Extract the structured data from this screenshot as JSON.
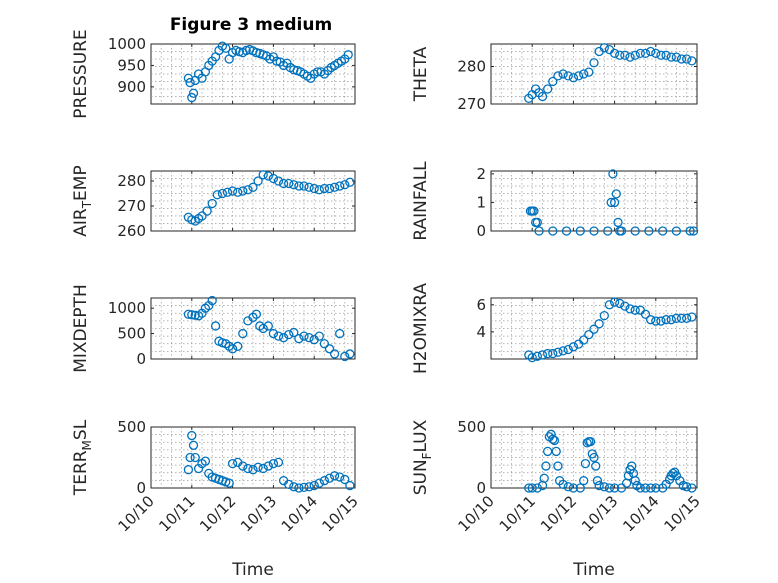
{
  "figure_title": "Figure 3 medium",
  "marker_color": "#0072BD",
  "chart_data": [
    {
      "type": "scatter",
      "title": "Figure 3 medium",
      "ylabel": "PRESSURE",
      "xlim": [
        "10/10",
        "10/15"
      ],
      "ylim": [
        860,
        1000
      ],
      "yticks": [
        900,
        950,
        1000
      ],
      "xtick_labels_shown": false,
      "grid": "minor-dotted",
      "x": [
        "10/10 22:00",
        "10/10 23:00",
        "10/11 00:00",
        "10/11 01:00",
        "10/11 02:00",
        "10/11 04:00",
        "10/11 06:00",
        "10/11 08:00",
        "10/11 10:00",
        "10/11 12:00",
        "10/11 14:00",
        "10/11 16:00",
        "10/11 18:00",
        "10/11 20:00",
        "10/11 22:00",
        "10/12 00:00",
        "10/12 02:00",
        "10/12 04:00",
        "10/12 06:00",
        "10/12 08:00",
        "10/12 10:00",
        "10/12 12:00",
        "10/12 14:00",
        "10/12 16:00",
        "10/12 18:00",
        "10/12 20:00",
        "10/12 22:00",
        "10/13 00:00",
        "10/13 02:00",
        "10/13 04:00",
        "10/13 06:00",
        "10/13 08:00",
        "10/13 10:00",
        "10/13 12:00",
        "10/13 14:00",
        "10/13 16:00",
        "10/13 18:00",
        "10/13 20:00",
        "10/13 22:00",
        "10/14 00:00",
        "10/14 02:00",
        "10/14 04:00",
        "10/14 06:00",
        "10/14 08:00",
        "10/14 10:00",
        "10/14 12:00",
        "10/14 14:00",
        "10/14 16:00",
        "10/14 18:00",
        "10/14 20:00"
      ],
      "y": [
        920,
        910,
        875,
        885,
        915,
        930,
        920,
        935,
        950,
        960,
        970,
        985,
        995,
        990,
        965,
        980,
        985,
        982,
        980,
        985,
        987,
        984,
        980,
        978,
        975,
        972,
        965,
        970,
        960,
        958,
        950,
        955,
        945,
        940,
        938,
        935,
        930,
        925,
        920,
        930,
        935,
        935,
        930,
        938,
        945,
        950,
        955,
        960,
        965,
        975
      ]
    },
    {
      "type": "scatter",
      "ylabel": "THETA",
      "xlim": [
        "10/10",
        "10/15"
      ],
      "ylim": [
        270,
        286
      ],
      "yticks": [
        270,
        280
      ],
      "xtick_labels_shown": false,
      "grid": "minor-dotted",
      "x": [
        "10/10 22:00",
        "10/11 00:00",
        "10/11 02:00",
        "10/11 04:00",
        "10/11 06:00",
        "10/11 09:00",
        "10/11 12:00",
        "10/11 15:00",
        "10/11 18:00",
        "10/11 21:00",
        "10/12 00:00",
        "10/12 03:00",
        "10/12 06:00",
        "10/12 09:00",
        "10/12 12:00",
        "10/12 15:00",
        "10/12 18:00",
        "10/12 21:00",
        "10/13 00:00",
        "10/13 03:00",
        "10/13 06:00",
        "10/13 09:00",
        "10/13 12:00",
        "10/13 15:00",
        "10/13 18:00",
        "10/13 21:00",
        "10/14 00:00",
        "10/14 03:00",
        "10/14 06:00",
        "10/14 09:00",
        "10/14 12:00",
        "10/14 15:00",
        "10/14 18:00",
        "10/14 21:00"
      ],
      "y": [
        271.5,
        272.5,
        274,
        273,
        272,
        274,
        276,
        277.5,
        278,
        277.5,
        277,
        277.5,
        278,
        278.5,
        281,
        284,
        285,
        284.5,
        283.5,
        283,
        283,
        282.5,
        283,
        283.5,
        283.5,
        284,
        283.5,
        283,
        283,
        282.5,
        282.5,
        282,
        282,
        281.5
      ]
    },
    {
      "type": "scatter",
      "ylabel": "AIR_TEMP",
      "xlim": [
        "10/10",
        "10/15"
      ],
      "ylim": [
        260,
        284
      ],
      "yticks": [
        260,
        270,
        280
      ],
      "xtick_labels_shown": false,
      "grid": "minor-dotted",
      "x": [
        "10/10 22:00",
        "10/11 00:00",
        "10/11 02:00",
        "10/11 04:00",
        "10/11 06:00",
        "10/11 09:00",
        "10/11 12:00",
        "10/11 15:00",
        "10/11 18:00",
        "10/11 21:00",
        "10/12 00:00",
        "10/12 03:00",
        "10/12 06:00",
        "10/12 09:00",
        "10/12 12:00",
        "10/12 15:00",
        "10/12 18:00",
        "10/12 21:00",
        "10/13 00:00",
        "10/13 03:00",
        "10/13 06:00",
        "10/13 09:00",
        "10/13 12:00",
        "10/13 15:00",
        "10/13 18:00",
        "10/13 21:00",
        "10/14 00:00",
        "10/14 03:00",
        "10/14 06:00",
        "10/14 09:00",
        "10/14 12:00",
        "10/14 15:00",
        "10/14 18:00",
        "10/14 21:00"
      ],
      "y": [
        265.5,
        264.5,
        264,
        265,
        266,
        268,
        271,
        274.5,
        275,
        275.5,
        276,
        275.5,
        276,
        276.5,
        277.5,
        280,
        282.5,
        282,
        281,
        280,
        279,
        279,
        278.5,
        278,
        278,
        277.5,
        277,
        276.5,
        277,
        277,
        277.5,
        278,
        278.5,
        279.5
      ]
    },
    {
      "type": "scatter",
      "ylabel": "RAINFALL",
      "xlim": [
        "10/10",
        "10/15"
      ],
      "ylim": [
        0,
        2.1
      ],
      "yticks": [
        0,
        1,
        2
      ],
      "xtick_labels_shown": false,
      "grid": "minor-dotted",
      "x": [
        "10/10 23:00",
        "10/11 00:00",
        "10/11 01:00",
        "10/11 02:00",
        "10/11 03:00",
        "10/11 04:00",
        "10/11 12:00",
        "10/11 20:00",
        "10/12 04:00",
        "10/12 12:00",
        "10/12 20:00",
        "10/12 22:00",
        "10/12 23:00",
        "10/13 00:00",
        "10/13 01:00",
        "10/13 02:00",
        "10/13 03:00",
        "10/13 04:00",
        "10/13 12:00",
        "10/13 20:00",
        "10/14 04:00",
        "10/14 12:00",
        "10/14 20:00",
        "10/14 22:00"
      ],
      "y": [
        0.7,
        0.7,
        0.7,
        0.3,
        0.3,
        0,
        0,
        0,
        0,
        0,
        0,
        1.0,
        2.0,
        1.0,
        1.3,
        0.3,
        0,
        0,
        0,
        0,
        0,
        0,
        0,
        0
      ]
    },
    {
      "type": "scatter",
      "ylabel": "MIXDEPTH",
      "xlim": [
        "10/10",
        "10/15"
      ],
      "ylim": [
        0,
        1200
      ],
      "yticks": [
        0,
        500,
        1000
      ],
      "xtick_labels_shown": false,
      "grid": "minor-dotted",
      "x": [
        "10/10 22:00",
        "10/11 00:00",
        "10/11 02:00",
        "10/11 04:00",
        "10/11 06:00",
        "10/11 08:00",
        "10/11 10:00",
        "10/11 12:00",
        "10/11 14:00",
        "10/11 16:00",
        "10/11 18:00",
        "10/11 20:00",
        "10/11 22:00",
        "10/12 00:00",
        "10/12 03:00",
        "10/12 06:00",
        "10/12 09:00",
        "10/12 12:00",
        "10/12 14:00",
        "10/12 16:00",
        "10/12 18:00",
        "10/12 21:00",
        "10/13 00:00",
        "10/13 03:00",
        "10/13 06:00",
        "10/13 09:00",
        "10/13 12:00",
        "10/13 15:00",
        "10/13 18:00",
        "10/13 21:00",
        "10/14 00:00",
        "10/14 03:00",
        "10/14 06:00",
        "10/14 09:00",
        "10/14 12:00",
        "10/14 15:00",
        "10/14 18:00",
        "10/14 21:00"
      ],
      "y": [
        880,
        870,
        860,
        850,
        900,
        1000,
        1050,
        1150,
        650,
        350,
        320,
        300,
        250,
        200,
        250,
        500,
        750,
        820,
        880,
        650,
        600,
        650,
        500,
        450,
        420,
        480,
        520,
        400,
        450,
        420,
        380,
        450,
        300,
        200,
        100,
        500,
        50,
        100
      ]
    },
    {
      "type": "scatter",
      "ylabel": "H2OMIXRA",
      "xlim": [
        "10/10",
        "10/15"
      ],
      "ylim": [
        2,
        6.5
      ],
      "yticks": [
        4,
        6
      ],
      "xtick_labels_shown": false,
      "grid": "minor-dotted",
      "x": [
        "10/10 22:00",
        "10/11 00:00",
        "10/11 03:00",
        "10/11 06:00",
        "10/11 09:00",
        "10/11 12:00",
        "10/11 15:00",
        "10/11 18:00",
        "10/11 21:00",
        "10/12 00:00",
        "10/12 03:00",
        "10/12 06:00",
        "10/12 09:00",
        "10/12 12:00",
        "10/12 15:00",
        "10/12 18:00",
        "10/12 21:00",
        "10/13 00:00",
        "10/13 03:00",
        "10/13 06:00",
        "10/13 09:00",
        "10/13 12:00",
        "10/13 15:00",
        "10/13 18:00",
        "10/13 21:00",
        "10/14 00:00",
        "10/14 03:00",
        "10/14 06:00",
        "10/14 09:00",
        "10/14 12:00",
        "10/14 15:00",
        "10/14 18:00",
        "10/14 21:00"
      ],
      "y": [
        2.3,
        2.1,
        2.2,
        2.3,
        2.4,
        2.4,
        2.5,
        2.6,
        2.7,
        2.9,
        3.1,
        3.4,
        3.8,
        4.2,
        4.6,
        5.2,
        6.0,
        6.2,
        6.1,
        5.9,
        5.7,
        5.6,
        5.6,
        5.3,
        4.9,
        4.8,
        4.8,
        4.9,
        4.9,
        5.0,
        5.0,
        5.0,
        5.1
      ]
    },
    {
      "type": "scatter",
      "ylabel": "TERR_MSL",
      "xlim": [
        "10/10",
        "10/15"
      ],
      "ylim": [
        0,
        500
      ],
      "yticks": [
        0,
        500
      ],
      "xtick_labels": [
        "10/10",
        "10/11",
        "10/12",
        "10/13",
        "10/14",
        "10/15"
      ],
      "xlabel": "Time",
      "grid": "minor-dotted",
      "x": [
        "10/10 22:00",
        "10/10 23:00",
        "10/11 00:00",
        "10/11 01:00",
        "10/11 02:00",
        "10/11 04:00",
        "10/11 06:00",
        "10/11 08:00",
        "10/11 10:00",
        "10/11 12:00",
        "10/11 14:00",
        "10/11 16:00",
        "10/11 18:00",
        "10/11 20:00",
        "10/11 22:00",
        "10/12 00:00",
        "10/12 03:00",
        "10/12 06:00",
        "10/12 09:00",
        "10/12 12:00",
        "10/12 15:00",
        "10/12 18:00",
        "10/12 21:00",
        "10/13 00:00",
        "10/13 03:00",
        "10/13 06:00",
        "10/13 09:00",
        "10/13 12:00",
        "10/13 15:00",
        "10/13 18:00",
        "10/13 21:00",
        "10/14 00:00",
        "10/14 03:00",
        "10/14 06:00",
        "10/14 09:00",
        "10/14 12:00",
        "10/14 15:00",
        "10/14 18:00",
        "10/14 21:00"
      ],
      "y": [
        150,
        250,
        430,
        350,
        250,
        160,
        200,
        220,
        120,
        90,
        80,
        70,
        60,
        50,
        40,
        200,
        210,
        180,
        160,
        150,
        170,
        160,
        180,
        200,
        210,
        60,
        30,
        10,
        0,
        5,
        10,
        20,
        40,
        60,
        80,
        100,
        90,
        70,
        20
      ]
    },
    {
      "type": "scatter",
      "ylabel": "SUN_FLUX",
      "xlim": [
        "10/10",
        "10/15"
      ],
      "ylim": [
        0,
        500
      ],
      "yticks": [
        0,
        500
      ],
      "xtick_labels": [
        "10/10",
        "10/11",
        "10/12",
        "10/13",
        "10/14",
        "10/15"
      ],
      "xlabel": "Time",
      "grid": "minor-dotted",
      "x": [
        "10/10 22:00",
        "10/11 00:00",
        "10/11 03:00",
        "10/11 06:00",
        "10/11 07:00",
        "10/11 08:00",
        "10/11 09:00",
        "10/11 10:00",
        "10/11 11:00",
        "10/11 12:00",
        "10/11 13:00",
        "10/11 14:00",
        "10/11 15:00",
        "10/11 16:00",
        "10/11 18:00",
        "10/11 21:00",
        "10/12 00:00",
        "10/12 04:00",
        "10/12 06:00",
        "10/12 07:00",
        "10/12 08:00",
        "10/12 09:00",
        "10/12 10:00",
        "10/12 11:00",
        "10/12 12:00",
        "10/12 13:00",
        "10/12 14:00",
        "10/12 15:00",
        "10/12 18:00",
        "10/12 21:00",
        "10/13 00:00",
        "10/13 04:00",
        "10/13 07:00",
        "10/13 08:00",
        "10/13 09:00",
        "10/13 10:00",
        "10/13 11:00",
        "10/13 12:00",
        "10/13 13:00",
        "10/13 15:00",
        "10/13 18:00",
        "10/13 21:00",
        "10/14 00:00",
        "10/14 04:00",
        "10/14 06:00",
        "10/14 08:00",
        "10/14 09:00",
        "10/14 10:00",
        "10/14 11:00",
        "10/14 12:00",
        "10/14 14:00",
        "10/14 16:00",
        "10/14 18:00",
        "10/14 21:00"
      ],
      "y": [
        0,
        0,
        0,
        20,
        80,
        180,
        300,
        420,
        440,
        400,
        390,
        300,
        180,
        60,
        30,
        10,
        0,
        0,
        60,
        200,
        370,
        380,
        380,
        280,
        250,
        180,
        60,
        20,
        10,
        0,
        0,
        0,
        40,
        100,
        150,
        180,
        120,
        60,
        20,
        0,
        0,
        0,
        0,
        0,
        30,
        70,
        100,
        120,
        130,
        100,
        60,
        20,
        10,
        0
      ]
    }
  ]
}
